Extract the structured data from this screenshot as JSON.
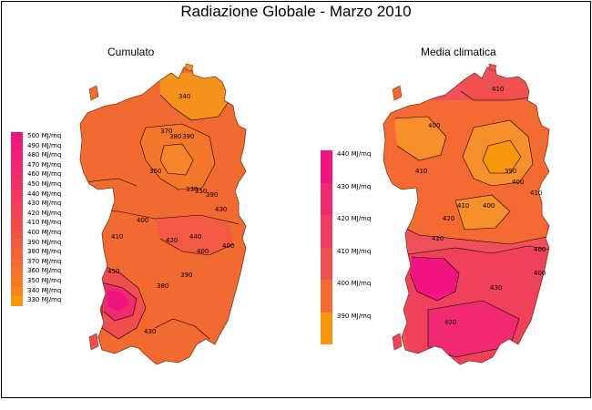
{
  "title": "Radiazione Globale - Marzo 2010",
  "panels": [
    {
      "subtitle": "Cumulato",
      "legend": {
        "unit": "MJ/mq",
        "items": [
          {
            "label": "500 MJ/mq",
            "color": "#f0157c"
          },
          {
            "label": "490 MJ/mq",
            "color": "#f01a78"
          },
          {
            "label": "480 MJ/mq",
            "color": "#f02074"
          },
          {
            "label": "470 MJ/mq",
            "color": "#f02670"
          },
          {
            "label": "460 MJ/mq",
            "color": "#f02c6b"
          },
          {
            "label": "450 MJ/mq",
            "color": "#f03266"
          },
          {
            "label": "440 MJ/mq",
            "color": "#f03a60"
          },
          {
            "label": "430 MJ/mq",
            "color": "#f0405a"
          },
          {
            "label": "420 MJ/mq",
            "color": "#f04654"
          },
          {
            "label": "410 MJ/mq",
            "color": "#f04c4e"
          },
          {
            "label": "400 MJ/mq",
            "color": "#f05248"
          },
          {
            "label": "390 MJ/mq",
            "color": "#f05a42"
          },
          {
            "label": "380 MJ/mq",
            "color": "#f3623a"
          },
          {
            "label": "370 MJ/mq",
            "color": "#f56a32"
          },
          {
            "label": "360 MJ/mq",
            "color": "#f5722a"
          },
          {
            "label": "350 MJ/mq",
            "color": "#f67a22"
          },
          {
            "label": "340 MJ/mq",
            "color": "#f7861a"
          },
          {
            "label": "330 MJ/mq",
            "color": "#f8960c"
          }
        ]
      },
      "contour_labels": [
        "340",
        "370",
        "380",
        "390",
        "360",
        "330",
        "350",
        "390",
        "400",
        "410",
        "420",
        "430",
        "440",
        "400",
        "400",
        "390",
        "380",
        "450",
        "430"
      ]
    },
    {
      "subtitle": "Media climatica",
      "legend": {
        "unit": "MJ/mq",
        "items": [
          {
            "label": "440 MJ/mq",
            "color": "#f21480"
          },
          {
            "label": "430 MJ/mq",
            "color": "#f12872"
          },
          {
            "label": "420 MJ/mq",
            "color": "#f03c62"
          },
          {
            "label": "410 MJ/mq",
            "color": "#f05050"
          },
          {
            "label": "400 MJ/mq",
            "color": "#f56a32"
          },
          {
            "label": "390 MJ/mq",
            "color": "#f8960c"
          }
        ]
      },
      "contour_labels": [
        "410",
        "400",
        "410",
        "390",
        "400",
        "410",
        "410",
        "400",
        "420",
        "400",
        "420",
        "430",
        "420",
        "400"
      ]
    }
  ]
}
